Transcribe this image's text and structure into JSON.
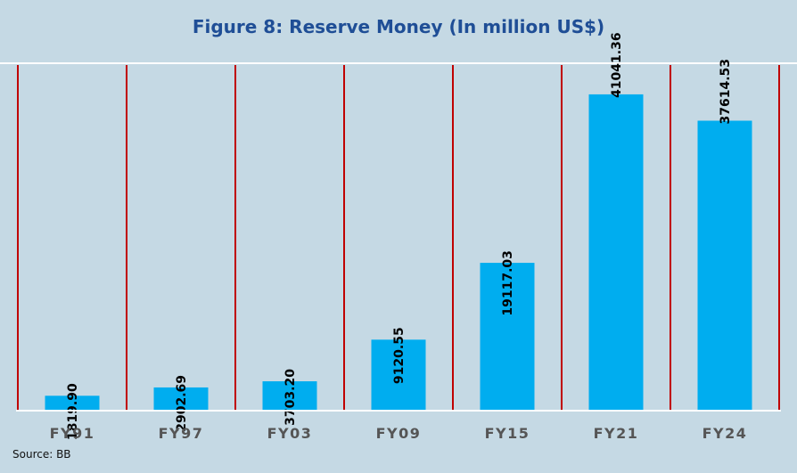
{
  "chart_data": {
    "type": "bar",
    "title": "Figure 8: Reserve Money (In million US$)",
    "categories": [
      "FY91",
      "FY97",
      "FY03",
      "FY09",
      "FY15",
      "FY21",
      "FY24"
    ],
    "values": [
      1819.9,
      2902.69,
      3703.2,
      9120.55,
      19117.03,
      41041.36,
      37614.53
    ],
    "value_labels": [
      "1819.90",
      "2902.69",
      "3703.20",
      "9120.55",
      "19117.03",
      "41041.36",
      "37614.53"
    ],
    "xlabel": "",
    "ylabel": "",
    "ylim": [
      0,
      45000
    ],
    "grid": false,
    "legend": "none",
    "source": "Source: BB"
  },
  "colors": {
    "background": "#c5d9e4",
    "bar": "#00adef",
    "separator": "#c00000",
    "title": "#1f4e96",
    "rule": "#ffffff"
  }
}
